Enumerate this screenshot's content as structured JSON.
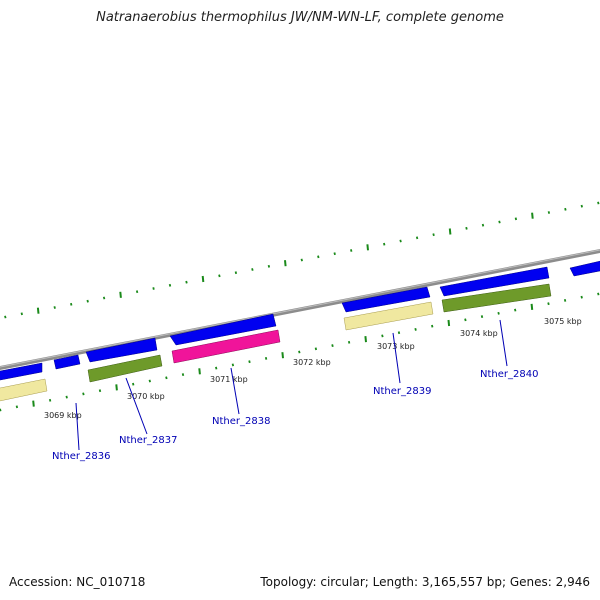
{
  "title": "Natranaerobius thermophilus JW/NM-WN-LF, complete genome",
  "footer": {
    "accession_label": "Accession:",
    "accession": "NC_010718",
    "stats": "Topology: circular; Length: 3,165,557 bp; Genes: 2,946"
  },
  "colors": {
    "backbone": "#8c8c8c",
    "cds_arrow": "#0000f0",
    "gene_yellow": "#f0e8a0",
    "gene_green": "#6e9a2a",
    "gene_magenta": "#f0149a",
    "tick": "#1a8a1a",
    "label": "#0000b4"
  },
  "kbp_labels": [
    "3069 kbp",
    "3070 kbp",
    "3071 kbp",
    "3072 kbp",
    "3073 kbp",
    "3074 kbp",
    "3075 kbp"
  ],
  "genes": [
    {
      "name": "Nther_2836",
      "category": "yellow"
    },
    {
      "name": "Nther_2837",
      "category": "green"
    },
    {
      "name": "Nther_2838",
      "category": "magenta"
    },
    {
      "name": "Nther_2839",
      "category": "yellow"
    },
    {
      "name": "Nther_2840",
      "category": "green"
    }
  ]
}
